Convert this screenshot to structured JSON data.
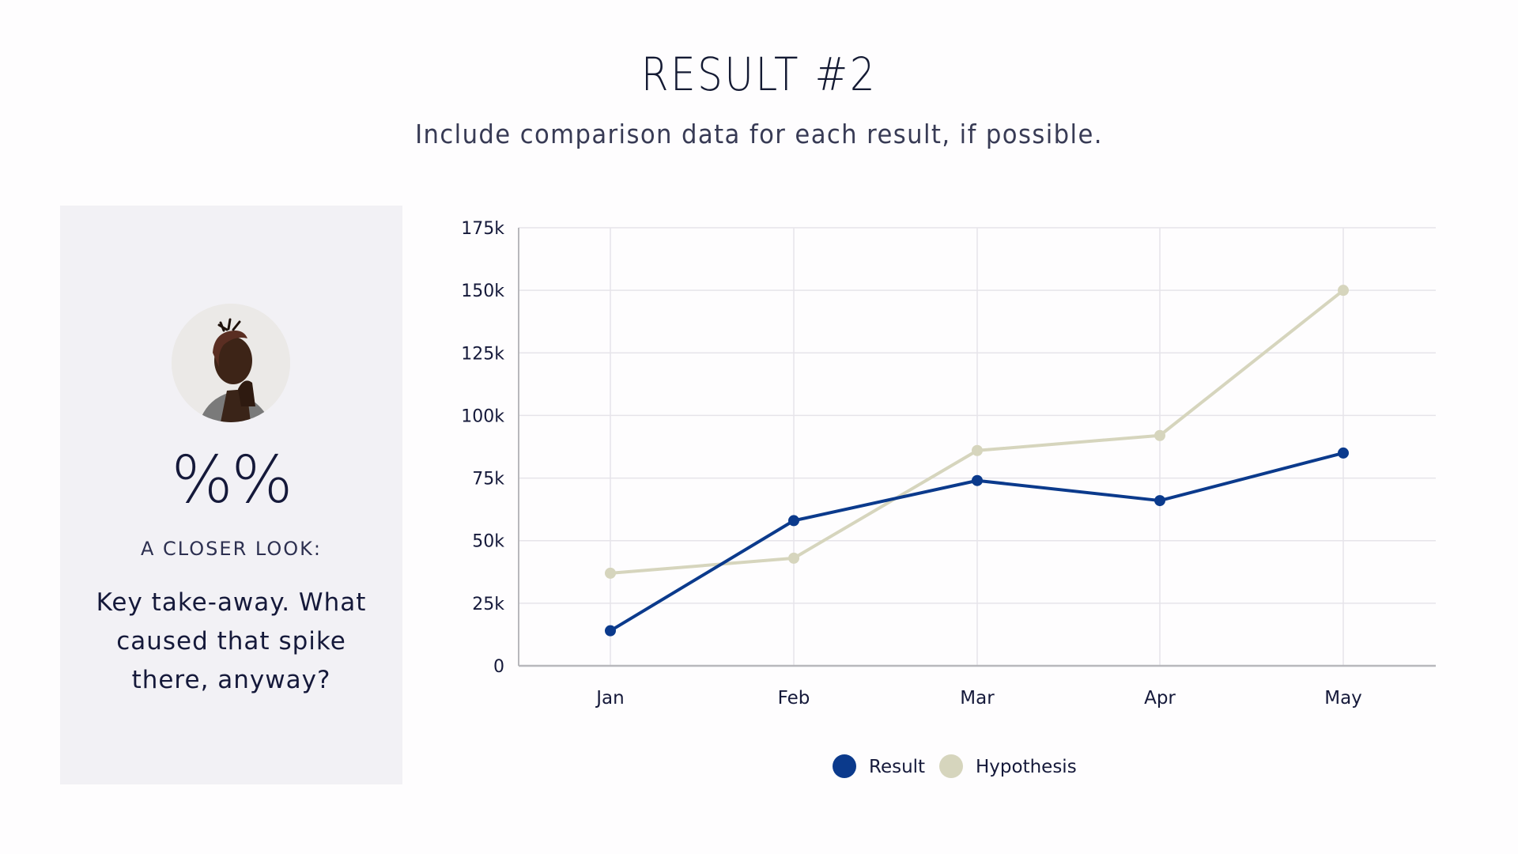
{
  "slide": {
    "title": "RESULT #2",
    "subtitle": "Include comparison data for each result, if possible."
  },
  "panel": {
    "avatar_icon": "portrait-photo",
    "big_stat": "%%",
    "label": "A CLOSER LOOK:",
    "takeaway": "Key take-away. What caused that spike there, anyway?"
  },
  "colors": {
    "result": "#0b3a8c",
    "hypothesis": "#d6d5bd",
    "grid": "#e6e4ea",
    "axis": "#b8b8bc",
    "panel_bg": "#f2f1f5",
    "text": "#15193a"
  },
  "chart_data": {
    "type": "line",
    "title": "",
    "xlabel": "",
    "ylabel": "",
    "categories": [
      "Jan",
      "Feb",
      "Mar",
      "Apr",
      "May"
    ],
    "series": [
      {
        "name": "Result",
        "color": "#0b3a8c",
        "values": [
          14000,
          58000,
          74000,
          66000,
          85000
        ]
      },
      {
        "name": "Hypothesis",
        "color": "#d6d5bd",
        "values": [
          37000,
          43000,
          86000,
          92000,
          150000
        ]
      }
    ],
    "yticks": [
      "0",
      "25k",
      "50k",
      "75k",
      "100k",
      "125k",
      "150k",
      "175k"
    ],
    "ylim": [
      0,
      175000
    ],
    "grid": true,
    "legend_position": "bottom"
  },
  "legend": {
    "items": [
      {
        "label": "Result"
      },
      {
        "label": "Hypothesis"
      }
    ]
  }
}
